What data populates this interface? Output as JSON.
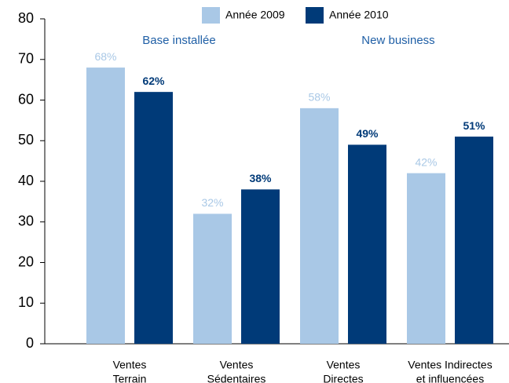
{
  "chart_data": {
    "type": "bar",
    "categories": [
      [
        "Ventes",
        "Terrain"
      ],
      [
        "Ventes",
        "Sédentaires"
      ],
      [
        "Ventes",
        "Directes"
      ],
      [
        "Ventes  Indirectes",
        "et influencées"
      ]
    ],
    "series": [
      {
        "name": "Année 2009",
        "color": "#a9c8e6",
        "values": [
          68,
          32,
          58,
          42
        ],
        "value_labels": [
          "68%",
          "32%",
          "58%",
          "42%"
        ]
      },
      {
        "name": "Année 2010",
        "color": "#003a78",
        "values": [
          62,
          38,
          49,
          51
        ],
        "value_labels": [
          "62%",
          "38%",
          "49%",
          "51%"
        ]
      }
    ],
    "annotations": [
      "Base installée",
      "New business"
    ],
    "ylim": [
      0,
      80
    ],
    "yticks": [
      0,
      10,
      20,
      30,
      40,
      50,
      60,
      70,
      80
    ]
  }
}
